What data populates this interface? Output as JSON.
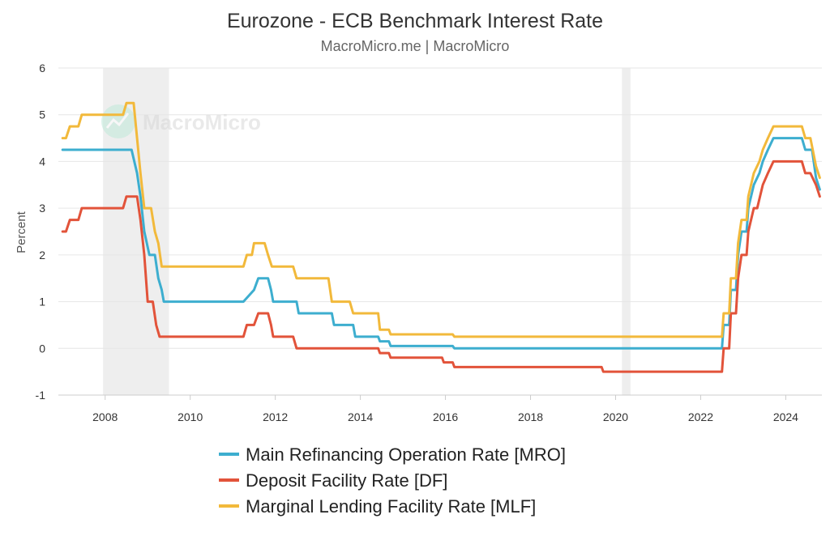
{
  "chart_data": {
    "type": "line",
    "title": "Eurozone - ECB Benchmark Interest Rate",
    "subtitle": "MacroMicro.me | MacroMicro",
    "ylabel": "Percent",
    "xlabel": "",
    "xlim": [
      2006.9,
      2024.85
    ],
    "ylim": [
      -1,
      6
    ],
    "yticks": [
      -1,
      0,
      1,
      2,
      3,
      4,
      5,
      6
    ],
    "xticks": [
      2008,
      2010,
      2012,
      2014,
      2016,
      2018,
      2020,
      2022,
      2024
    ],
    "grid": "horizontal",
    "legend_position": "bottom",
    "shaded_periods": [
      [
        2007.95,
        2009.5
      ],
      [
        2020.15,
        2020.35
      ]
    ],
    "watermark": "MacroMicro",
    "series": [
      {
        "name": "Main Refinancing Operation Rate [MRO]",
        "color": "#3daecf",
        "points": [
          [
            2007.0,
            4.25
          ],
          [
            2008.62,
            4.25
          ],
          [
            2008.75,
            3.75
          ],
          [
            2008.83,
            3.25
          ],
          [
            2008.92,
            2.5
          ],
          [
            2009.04,
            2.0
          ],
          [
            2009.17,
            2.0
          ],
          [
            2009.25,
            1.5
          ],
          [
            2009.33,
            1.25
          ],
          [
            2009.38,
            1.0
          ],
          [
            2011.25,
            1.0
          ],
          [
            2011.5,
            1.25
          ],
          [
            2011.6,
            1.5
          ],
          [
            2011.83,
            1.5
          ],
          [
            2011.9,
            1.25
          ],
          [
            2011.95,
            1.0
          ],
          [
            2012.5,
            1.0
          ],
          [
            2012.55,
            0.75
          ],
          [
            2013.33,
            0.75
          ],
          [
            2013.38,
            0.5
          ],
          [
            2013.83,
            0.5
          ],
          [
            2013.88,
            0.25
          ],
          [
            2014.42,
            0.25
          ],
          [
            2014.46,
            0.15
          ],
          [
            2014.67,
            0.15
          ],
          [
            2014.71,
            0.05
          ],
          [
            2016.17,
            0.05
          ],
          [
            2016.21,
            0.0
          ],
          [
            2022.5,
            0.0
          ],
          [
            2022.54,
            0.5
          ],
          [
            2022.67,
            0.5
          ],
          [
            2022.71,
            1.25
          ],
          [
            2022.83,
            1.25
          ],
          [
            2022.88,
            2.0
          ],
          [
            2022.96,
            2.5
          ],
          [
            2023.08,
            2.5
          ],
          [
            2023.12,
            3.0
          ],
          [
            2023.25,
            3.5
          ],
          [
            2023.38,
            3.75
          ],
          [
            2023.46,
            4.0
          ],
          [
            2023.58,
            4.25
          ],
          [
            2023.71,
            4.5
          ],
          [
            2024.38,
            4.5
          ],
          [
            2024.46,
            4.25
          ],
          [
            2024.62,
            4.25
          ],
          [
            2024.71,
            3.65
          ],
          [
            2024.8,
            3.4
          ]
        ]
      },
      {
        "name": "Deposit Facility Rate [DF]",
        "color": "#e2533a",
        "points": [
          [
            2007.0,
            2.5
          ],
          [
            2007.08,
            2.5
          ],
          [
            2007.17,
            2.75
          ],
          [
            2007.37,
            2.75
          ],
          [
            2007.45,
            3.0
          ],
          [
            2008.42,
            3.0
          ],
          [
            2008.5,
            3.25
          ],
          [
            2008.75,
            3.25
          ],
          [
            2008.83,
            2.75
          ],
          [
            2008.92,
            2.0
          ],
          [
            2009.0,
            1.0
          ],
          [
            2009.12,
            1.0
          ],
          [
            2009.2,
            0.5
          ],
          [
            2009.28,
            0.25
          ],
          [
            2011.25,
            0.25
          ],
          [
            2011.33,
            0.5
          ],
          [
            2011.5,
            0.5
          ],
          [
            2011.6,
            0.75
          ],
          [
            2011.83,
            0.75
          ],
          [
            2011.9,
            0.5
          ],
          [
            2011.95,
            0.25
          ],
          [
            2012.42,
            0.25
          ],
          [
            2012.5,
            0.0
          ],
          [
            2014.42,
            0.0
          ],
          [
            2014.46,
            -0.1
          ],
          [
            2014.67,
            -0.1
          ],
          [
            2014.71,
            -0.2
          ],
          [
            2015.92,
            -0.2
          ],
          [
            2015.96,
            -0.3
          ],
          [
            2016.17,
            -0.3
          ],
          [
            2016.21,
            -0.4
          ],
          [
            2019.67,
            -0.4
          ],
          [
            2019.71,
            -0.5
          ],
          [
            2022.5,
            -0.5
          ],
          [
            2022.54,
            0.0
          ],
          [
            2022.67,
            0.0
          ],
          [
            2022.71,
            0.75
          ],
          [
            2022.83,
            0.75
          ],
          [
            2022.88,
            1.5
          ],
          [
            2022.96,
            2.0
          ],
          [
            2023.08,
            2.0
          ],
          [
            2023.12,
            2.5
          ],
          [
            2023.25,
            3.0
          ],
          [
            2023.33,
            3.0
          ],
          [
            2023.46,
            3.5
          ],
          [
            2023.58,
            3.75
          ],
          [
            2023.71,
            4.0
          ],
          [
            2024.38,
            4.0
          ],
          [
            2024.46,
            3.75
          ],
          [
            2024.58,
            3.75
          ],
          [
            2024.71,
            3.5
          ],
          [
            2024.8,
            3.25
          ]
        ]
      },
      {
        "name": "Marginal Lending Facility Rate [MLF]",
        "color": "#f2b93b",
        "points": [
          [
            2007.0,
            4.5
          ],
          [
            2007.08,
            4.5
          ],
          [
            2007.17,
            4.75
          ],
          [
            2007.37,
            4.75
          ],
          [
            2007.45,
            5.0
          ],
          [
            2008.42,
            5.0
          ],
          [
            2008.5,
            5.25
          ],
          [
            2008.67,
            5.25
          ],
          [
            2008.75,
            4.5
          ],
          [
            2008.83,
            3.75
          ],
          [
            2008.92,
            3.0
          ],
          [
            2009.08,
            3.0
          ],
          [
            2009.17,
            2.5
          ],
          [
            2009.25,
            2.25
          ],
          [
            2009.33,
            1.75
          ],
          [
            2011.25,
            1.75
          ],
          [
            2011.33,
            2.0
          ],
          [
            2011.45,
            2.0
          ],
          [
            2011.5,
            2.25
          ],
          [
            2011.75,
            2.25
          ],
          [
            2011.83,
            2.0
          ],
          [
            2011.92,
            1.75
          ],
          [
            2012.42,
            1.75
          ],
          [
            2012.5,
            1.5
          ],
          [
            2013.25,
            1.5
          ],
          [
            2013.33,
            1.0
          ],
          [
            2013.75,
            1.0
          ],
          [
            2013.83,
            0.75
          ],
          [
            2014.42,
            0.75
          ],
          [
            2014.46,
            0.4
          ],
          [
            2014.67,
            0.4
          ],
          [
            2014.71,
            0.3
          ],
          [
            2016.17,
            0.3
          ],
          [
            2016.21,
            0.25
          ],
          [
            2022.5,
            0.25
          ],
          [
            2022.54,
            0.75
          ],
          [
            2022.67,
            0.75
          ],
          [
            2022.71,
            1.5
          ],
          [
            2022.83,
            1.5
          ],
          [
            2022.88,
            2.25
          ],
          [
            2022.96,
            2.75
          ],
          [
            2023.08,
            2.75
          ],
          [
            2023.12,
            3.25
          ],
          [
            2023.25,
            3.75
          ],
          [
            2023.38,
            4.0
          ],
          [
            2023.46,
            4.25
          ],
          [
            2023.58,
            4.5
          ],
          [
            2023.71,
            4.75
          ],
          [
            2024.38,
            4.75
          ],
          [
            2024.46,
            4.5
          ],
          [
            2024.58,
            4.5
          ],
          [
            2024.71,
            3.9
          ],
          [
            2024.8,
            3.65
          ]
        ]
      }
    ]
  }
}
